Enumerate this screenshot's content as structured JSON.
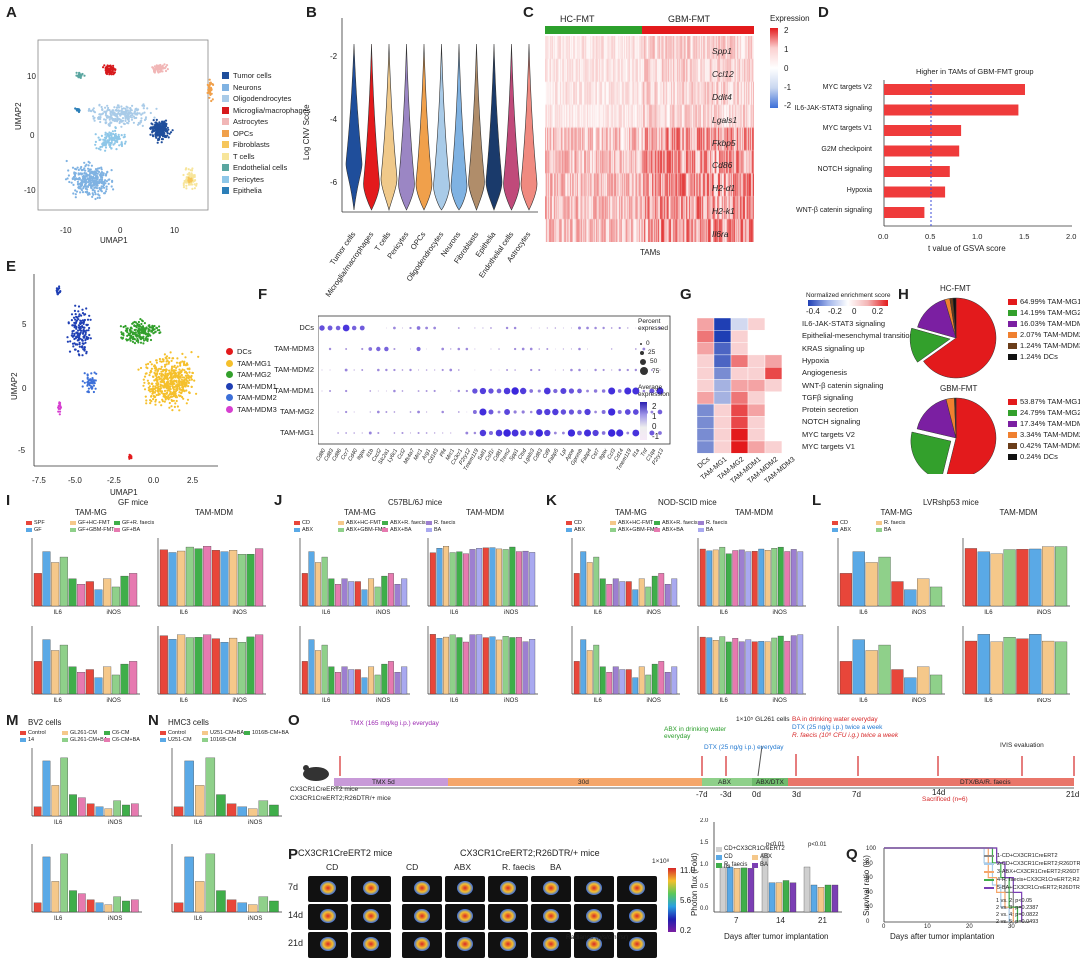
{
  "panels": {
    "A": {
      "letter": "A",
      "xlabel": "UMAP1",
      "ylabel": "UMAP2",
      "xticks": [
        "-10",
        "0",
        "10"
      ],
      "yticks": [
        "10",
        "0",
        "-10"
      ],
      "cluster_label": "0",
      "legend": [
        {
          "label": "Tumor cells",
          "color": "#1f4e9b"
        },
        {
          "label": "Neurons",
          "color": "#7fb2e2"
        },
        {
          "label": "Oligodendrocytes",
          "color": "#a9cbe8"
        },
        {
          "label": "Microglia/macrophages",
          "color": "#d7191c"
        },
        {
          "label": "Astrocytes",
          "color": "#f1b6b6"
        },
        {
          "label": "OPCs",
          "color": "#f0a04b"
        },
        {
          "label": "Fibroblasts",
          "color": "#f6c65b"
        },
        {
          "label": "T cells",
          "color": "#f7e59a"
        },
        {
          "label": "Endothelial cells",
          "color": "#5aa6a0"
        },
        {
          "label": "Pericytes",
          "color": "#8ec7e8"
        },
        {
          "label": "Epithelia",
          "color": "#2c7fb8"
        }
      ]
    },
    "B": {
      "letter": "B",
      "ylabel": "Log CNV Score",
      "yticks": [
        "-2",
        "-4",
        "-6"
      ],
      "categories": [
        "Tumor cells",
        "Microglia/macrophages",
        "T cells",
        "Pericytes",
        "OPCs",
        "Oligodendrocytes",
        "Neurons",
        "Fibroblasts",
        "Epithelia",
        "Endothelial cells",
        "Astrocytes"
      ]
    },
    "C": {
      "letter": "C",
      "groups": [
        "HC-FMT",
        "GBM-FMT"
      ],
      "scale_title": "Expression",
      "scale_ticks": [
        "2",
        "1",
        "0",
        "-1",
        "-2"
      ],
      "genes": [
        "Spp1",
        "Ccl12",
        "Ddit4",
        "Lgals1",
        "Fkbp5",
        "Cd86",
        "H2-d1",
        "H2-k1",
        "Il6ra"
      ],
      "xlabel": "TAMs"
    },
    "D": {
      "letter": "D",
      "subtitle": "Higher in TAMs of GBM-FMT group",
      "xlabel": "t value of GSVA score",
      "xticks": [
        "0.0",
        "0.5",
        "1.0",
        "1.5",
        "2.0"
      ]
    },
    "E": {
      "letter": "E",
      "xlabel": "UMAP1",
      "ylabel": "UMAP2",
      "xticks": [
        "-7.5",
        "-5.0",
        "-2.5",
        "0.0",
        "2.5"
      ],
      "yticks": [
        "5",
        "0",
        "-5"
      ],
      "legend": [
        {
          "label": "DCs",
          "color": "#e31a1c"
        },
        {
          "label": "TAM-MG1",
          "color": "#f5c02c"
        },
        {
          "label": "TAM-MG2",
          "color": "#33a02c"
        },
        {
          "label": "TAM-MDM1",
          "color": "#1f3fb4"
        },
        {
          "label": "TAM-MDM2",
          "color": "#3c6fd8"
        },
        {
          "label": "TAM-MDM3",
          "color": "#d63fd0"
        }
      ]
    },
    "F": {
      "letter": "F",
      "rows": [
        "DCs",
        "TAM-MDM3",
        "TAM-MDM2",
        "TAM-MDM1",
        "TAM-MG2",
        "TAM-MG1"
      ],
      "genes": [
        "Cd80",
        "Cd83",
        "Cd86",
        "Ccr7",
        "Cd40",
        "Itgax",
        "Il1b",
        "Cxcl2",
        "Slc2a1",
        "Ly6c1",
        "Ccl2",
        "Ms4a7",
        "Mrc1",
        "Arg1",
        "Cd163",
        "Pf4",
        "Mrc1",
        "Cx3cr1",
        "P2ry12",
        "Tmem119",
        "Sall1",
        "Csf1r",
        "Cd81",
        "Trem2",
        "Spp1",
        "Ctsd",
        "Lgals3",
        "Cd63",
        "Cd9",
        "Fabp5",
        "Lpl",
        "Apoe",
        "Gpnmb",
        "Fabp4",
        "Cst7",
        "Itgax",
        "Ccl3",
        "Cd14",
        "Tmem119",
        "Il1a",
        "Tnf",
        "C1qa",
        "P2ry13"
      ],
      "legend_pct_title": "Percent expressed",
      "legend_pct": [
        "0",
        "25",
        "50",
        "75"
      ],
      "legend_avg_title": "Average expression",
      "legend_avg": [
        "2",
        "1",
        "0",
        "-1"
      ]
    },
    "G": {
      "letter": "G",
      "scale_title": "Normalized enrichment score",
      "scale_ticks": [
        "-0.4",
        "-0.2",
        "0",
        "0.2"
      ],
      "columns": [
        "DCs",
        "TAM-MG1",
        "TAM-MG2",
        "TAM-MDM1",
        "TAM-MDM2",
        "TAM-MDM3"
      ],
      "rows": [
        "IL6-JAK-STAT3 signaling",
        "Epithelial-mesenchymal transition",
        "KRAS signaling up",
        "Hypoxia",
        "Angiogenesis",
        "WNT-β catenin signaling",
        "TGFβ signaling",
        "Protein secretion",
        "NOTCH signaling",
        "MYC targets V2",
        "MYC targets V1"
      ]
    },
    "H": {
      "letter": "H",
      "pies": [
        {
          "title": "HC-FMT",
          "slices": [
            {
              "label": "64.99% TAM-MG1",
              "value": 64.99,
              "color": "#e31a1c"
            },
            {
              "label": "14.19% TAM-MG2",
              "value": 14.19,
              "color": "#33a02c"
            },
            {
              "label": "16.03% TAM-MDM1",
              "value": 16.03,
              "color": "#7b1fa2"
            },
            {
              "label": "2.07% TAM-MDM2",
              "value": 2.07,
              "color": "#f08030"
            },
            {
              "label": "1.24% TAM-MDM3",
              "value": 1.24,
              "color": "#6a3d1a"
            },
            {
              "label": "1.24% DCs",
              "value": 1.24,
              "color": "#111111"
            }
          ]
        },
        {
          "title": "GBM-FMT",
          "slices": [
            {
              "label": "53.87% TAM-MG1",
              "value": 53.87,
              "color": "#e31a1c"
            },
            {
              "label": "24.79% TAM-MG2",
              "value": 24.79,
              "color": "#33a02c"
            },
            {
              "label": "17.34% TAM-MDM1",
              "value": 17.34,
              "color": "#7b1fa2"
            },
            {
              "label": "3.34% TAM-MDM2",
              "value": 3.34,
              "color": "#f08030"
            },
            {
              "label": "0.42% TAM-MDM3",
              "value": 0.42,
              "color": "#6a3d1a"
            },
            {
              "label": "0.24% DCs",
              "value": 0.24,
              "color": "#111111"
            }
          ]
        }
      ]
    },
    "I": {
      "letter": "I",
      "title": "GF mice",
      "sub": [
        "TAM-MG",
        "TAM-MDM"
      ],
      "legend": [
        "SPF",
        "GF",
        "GF+HC-FMT",
        "GF+GBM-FMT",
        "GF+R. faecis",
        "GF+BA"
      ]
    },
    "J": {
      "letter": "J",
      "title": "C57BL/6J mice",
      "sub": [
        "TAM-MG",
        "TAM-MDM"
      ],
      "legend": [
        "CD",
        "ABX",
        "ABX+HC-FMT",
        "ABX+GBM-FMT",
        "ABX+R. faecis",
        "ABX+BA",
        "R. faecis",
        "BA"
      ]
    },
    "K": {
      "letter": "K",
      "title": "NOD-SCID mice",
      "sub": [
        "TAM-MG",
        "TAM-MDM"
      ],
      "legend": [
        "CD",
        "ABX",
        "ABX+HC-FMT",
        "ABX+GBM-FMT",
        "ABX+R. faecis",
        "ABX+BA",
        "R. faecis",
        "BA"
      ]
    },
    "L": {
      "letter": "L",
      "title": "LVRshp53 mice",
      "sub": [
        "TAM-MG",
        "TAM-MDM"
      ],
      "legend": [
        "CD",
        "ABX",
        "R. faecis",
        "BA"
      ]
    },
    "M": {
      "letter": "M",
      "title": "BV2 cells",
      "legend": [
        "Control",
        "14",
        "GL261-CM",
        "GL261-CM+BA",
        "C6-CM",
        "C6-CM+BA"
      ]
    },
    "N": {
      "letter": "N",
      "title": "HMC3 cells",
      "legend": [
        "Control",
        "U251-CM",
        "U251-CM+BA",
        "1016B-CM",
        "1016B-CM+BA"
      ]
    },
    "O": {
      "letter": "O",
      "mouse": "CX3CR1CreERT2 mice",
      "mouse2": "CX3CR1CreERT2;R26DTR/+ mice",
      "notes": {
        "tmx": "TMX (165 mg/kg i.p.) everyday",
        "abx": "ABX in drinking water everyday",
        "dtx": "DTX (25 ng/g i.p.) everyday",
        "gl261": "1×10⁵ GL261 cells",
        "ba": "BA in drinking water everyday",
        "dtx2": "DTX (25 ng/g i.p.) twice a week",
        "rf": "R. faecis (10⁸ CFU i.g.) twice a week",
        "ivis": "IVIS evaluation",
        "sac": "Sacrificed (n=6)"
      },
      "segments": [
        "TMX 5d",
        "30d",
        "ABX",
        "ABX/DTX",
        "DTX/BA/R. faecis"
      ],
      "ticks": [
        "-7d",
        "-3d",
        "0d",
        "3d",
        "7d",
        "14d",
        "21d"
      ]
    },
    "P": {
      "letter": "P",
      "header1": "CX3CR1CreERT2 mice",
      "header2": "CX3CR1CreERT2;R26DTR/+ mice",
      "cols": [
        "CD",
        "CD",
        "ABX",
        "R. faecis",
        "BA"
      ],
      "rows": [
        "7d",
        "14d",
        "21d"
      ],
      "scale_top": "1×10⁸",
      "scale_ticks": [
        "11.0",
        "5.6",
        "0.2"
      ],
      "scale_label": "Radiance (p/s/cm²/sr)",
      "chart": {
        "ylabel": "Photon flux (Fold)",
        "xlabel": "Days after tumor implantation",
        "days": [
          "7",
          "14",
          "21"
        ],
        "yticks": [
          "2.0",
          "1.5",
          "1.0",
          "0.5",
          "0.0"
        ],
        "sig": [
          "ns",
          "p<0.01",
          "p<0.01"
        ],
        "legend": [
          "CD+CX3CR1CreERT2",
          "CD",
          "ABX",
          "R. faecis",
          "BA"
        ]
      }
    },
    "Q": {
      "letter": "Q",
      "ylabel": "Survival ratio (%)",
      "xlabel": "Days after tumor implantation",
      "yticks": [
        "100",
        "80",
        "60",
        "40",
        "20",
        "0"
      ],
      "xticks": [
        "0",
        "10",
        "20",
        "30"
      ],
      "legend": [
        "1-CD+CX3CR1CreERT2",
        "2-CD+CX3CR1CreERT2;R26DTR/+",
        "3-ABX+CX3CR1CreERT2;R26DTR/+",
        "4-R. faecis+CX3CR1CreERT2;R26DTR/+",
        "5-BA+CX3CR1CreERT2;R26DTR/+"
      ],
      "stats": [
        "1 vs. 2: p<0.05",
        "2 vs. 3: p=0.2387",
        "2 vs. 4: p=0.0822",
        "2 vs. 5: p=0.0493"
      ]
    }
  },
  "chart_data": [
    {
      "type": "bar",
      "title": "D: Higher in TAMs of GBM-FMT group",
      "categories": [
        "MYC targets V2",
        "IL6-JAK-STAT3 signaling",
        "MYC targets V1",
        "G2M checkpoint",
        "NOTCH signaling",
        "Hypoxia",
        "WNT-β catenin signaling"
      ],
      "values": [
        1.5,
        1.43,
        0.82,
        0.8,
        0.7,
        0.65,
        0.43
      ],
      "xlabel": "t value of GSVA score",
      "xlim": [
        0,
        2.0
      ],
      "threshold": 0.5
    },
    {
      "type": "bar",
      "title": "P: Photon flux",
      "categories": [
        "7",
        "14",
        "21"
      ],
      "series": [
        {
          "name": "CD+CX3CR1CreERT2",
          "values": [
            1.0,
            1.3,
            1.0
          ]
        },
        {
          "name": "CD",
          "values": [
            1.0,
            0.65,
            0.6
          ]
        },
        {
          "name": "ABX",
          "values": [
            0.97,
            0.65,
            0.55
          ]
        },
        {
          "name": "R. faecis",
          "values": [
            0.98,
            0.7,
            0.6
          ]
        },
        {
          "name": "BA",
          "values": [
            0.97,
            0.65,
            0.6
          ]
        }
      ],
      "ylabel": "Photon flux (Fold)",
      "ylim": [
        0,
        2.0
      ]
    },
    {
      "type": "line",
      "title": "Q: Survival",
      "series": [
        {
          "name": "1",
          "x": [
            0,
            27,
            29,
            31,
            33
          ],
          "y": [
            100,
            80,
            40,
            20,
            0
          ]
        },
        {
          "name": "2",
          "x": [
            0,
            24,
            26,
            28,
            30
          ],
          "y": [
            100,
            80,
            50,
            20,
            0
          ]
        },
        {
          "name": "3",
          "x": [
            0,
            25,
            27,
            29,
            31
          ],
          "y": [
            100,
            60,
            40,
            20,
            0
          ]
        },
        {
          "name": "4",
          "x": [
            0,
            26,
            28,
            30,
            32
          ],
          "y": [
            100,
            80,
            60,
            20,
            0
          ]
        },
        {
          "name": "5",
          "x": [
            0,
            27,
            29,
            31,
            33
          ],
          "y": [
            100,
            80,
            60,
            40,
            0
          ]
        }
      ],
      "xlabel": "Days after tumor implantation",
      "ylabel": "Survival ratio (%)",
      "xlim": [
        0,
        35
      ],
      "ylim": [
        0,
        100
      ]
    }
  ]
}
